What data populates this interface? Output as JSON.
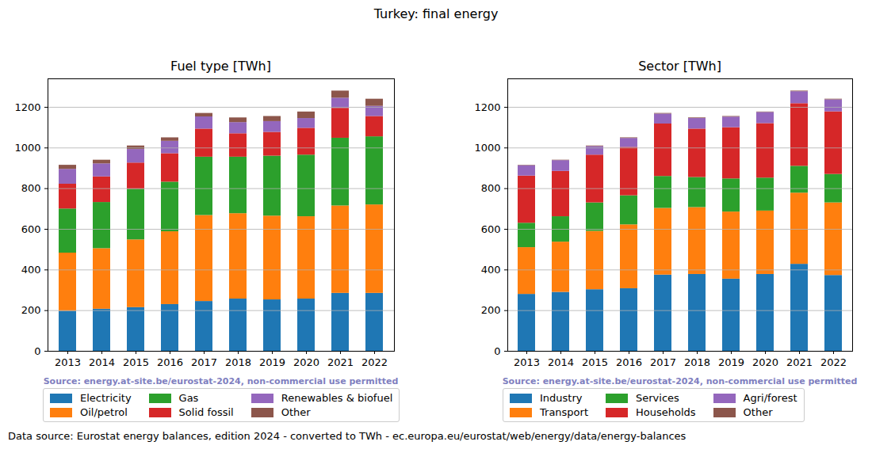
{
  "title": "Turkey: final energy",
  "caption": "Data source: Eurostat energy balances, edition 2024 - converted to TWh - ec.europa.eu/eurostat/web/energy/data/energy-balances",
  "chart_data": [
    {
      "type": "bar",
      "title": "Fuel type [TWh]",
      "annotations": [
        "Source: energy.at-site.be/eurostat-2024, non-commercial use permitted"
      ],
      "categories": [
        "2013",
        "2014",
        "2015",
        "2016",
        "2017",
        "2018",
        "2019",
        "2020",
        "2021",
        "2022"
      ],
      "series": [
        {
          "name": "Electricity",
          "color": "#1f77b4",
          "values": [
            197,
            207,
            215,
            230,
            245,
            257,
            253,
            257,
            285,
            285
          ]
        },
        {
          "name": "Oil/petrol",
          "color": "#ff7f0e",
          "values": [
            286,
            298,
            333,
            358,
            423,
            420,
            412,
            405,
            430,
            435
          ]
        },
        {
          "name": "Gas",
          "color": "#2ca02c",
          "values": [
            217,
            227,
            249,
            244,
            287,
            278,
            295,
            303,
            333,
            335
          ]
        },
        {
          "name": "Solid fossil",
          "color": "#d62728",
          "values": [
            122,
            126,
            129,
            140,
            138,
            115,
            117,
            132,
            147,
            100
          ]
        },
        {
          "name": "Renewables & biofuel",
          "color": "#9467bd",
          "values": [
            73,
            64,
            67,
            61,
            60,
            55,
            53,
            48,
            50,
            50
          ]
        },
        {
          "name": "Other",
          "color": "#8c564b",
          "values": [
            20,
            18,
            17,
            17,
            17,
            23,
            25,
            32,
            35,
            35
          ]
        }
      ],
      "stacked": true,
      "ylim": [
        0,
        1340
      ],
      "yticks": [
        0,
        200,
        400,
        600,
        800,
        1000,
        1200
      ],
      "grid": true,
      "legend": "bottom"
    },
    {
      "type": "bar",
      "title": "Sector [TWh]",
      "annotations": [
        "Source: energy.at-site.be/eurostat-2024, non-commercial use permitted"
      ],
      "categories": [
        "2013",
        "2014",
        "2015",
        "2016",
        "2017",
        "2018",
        "2019",
        "2020",
        "2021",
        "2022"
      ],
      "series": [
        {
          "name": "Industry",
          "color": "#1f77b4",
          "values": [
            280,
            290,
            303,
            308,
            375,
            378,
            355,
            378,
            428,
            373
          ]
        },
        {
          "name": "Transport",
          "color": "#ff7f0e",
          "values": [
            230,
            247,
            287,
            314,
            328,
            329,
            330,
            312,
            350,
            357
          ]
        },
        {
          "name": "Services",
          "color": "#2ca02c",
          "values": [
            120,
            125,
            140,
            143,
            157,
            148,
            163,
            162,
            132,
            140
          ]
        },
        {
          "name": "Households",
          "color": "#d62728",
          "values": [
            232,
            223,
            235,
            238,
            258,
            238,
            252,
            268,
            308,
            308
          ]
        },
        {
          "name": "Agri/forest",
          "color": "#9467bd",
          "values": [
            51,
            53,
            42,
            44,
            49,
            52,
            52,
            55,
            59,
            59
          ]
        },
        {
          "name": "Other",
          "color": "#8c564b",
          "values": [
            2,
            2,
            3,
            3,
            3,
            3,
            3,
            2,
            3,
            3
          ]
        }
      ],
      "stacked": true,
      "ylim": [
        0,
        1340
      ],
      "yticks": [
        0,
        200,
        400,
        600,
        800,
        1000,
        1200
      ],
      "grid": true,
      "legend": "bottom"
    }
  ]
}
